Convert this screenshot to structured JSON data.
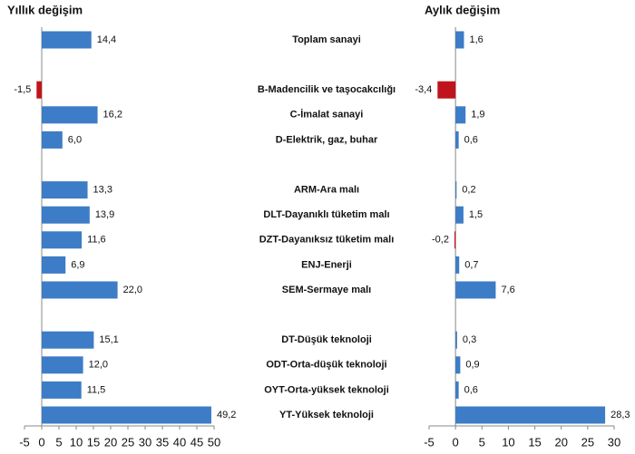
{
  "chart_data": [
    {
      "type": "hbar",
      "title": "Yıllık değişim",
      "categories": [
        "Toplam sanayi",
        null,
        "B-Madencilik ve taşocakcılığı",
        "C-İmalat sanayi",
        "D-Elektrik, gaz, buhar",
        null,
        "ARM-Ara malı",
        "DLT-Dayanıklı tüketim malı",
        "DZT-Dayanıksız tüketim malı",
        "ENJ-Enerji",
        "SEM-Sermaye malı",
        null,
        "DT-Düşük teknoloji",
        "ODT-Orta-düşük teknoloji",
        "OYT-Orta-yüksek teknoloji",
        "YT-Yüksek teknoloji"
      ],
      "values": [
        14.4,
        null,
        -1.5,
        16.2,
        6.0,
        null,
        13.3,
        13.9,
        11.6,
        6.9,
        22.0,
        null,
        15.1,
        12.0,
        11.5,
        49.2
      ],
      "value_labels": [
        "14,4",
        null,
        "-1,5",
        "16,2",
        "6,0",
        null,
        "13,3",
        "13,9",
        "11,6",
        "6,9",
        "22,0",
        null,
        "15,1",
        "12,0",
        "11,5",
        "49,2"
      ],
      "xlim": [
        -5,
        50
      ],
      "xticks": [
        -5,
        0,
        5,
        10,
        15,
        20,
        25,
        30,
        35,
        40,
        45,
        50
      ],
      "color": "#3d7cc6",
      "negative_color": "#c0141c"
    },
    {
      "type": "hbar",
      "title": "Aylık değişim",
      "values": [
        1.6,
        null,
        -3.4,
        1.9,
        0.6,
        null,
        0.2,
        1.5,
        -0.2,
        0.7,
        7.6,
        null,
        0.3,
        0.9,
        0.6,
        28.3
      ],
      "value_labels": [
        "1,6",
        null,
        "-3,4",
        "1,9",
        "0,6",
        null,
        "0,2",
        "1,5",
        "-0,2",
        "0,7",
        "7,6",
        null,
        "0,3",
        "0,9",
        "0,6",
        "28,3"
      ],
      "xlim": [
        -5,
        30
      ],
      "xticks": [
        -5,
        0,
        5,
        10,
        15,
        20,
        25,
        30
      ],
      "color": "#3d7cc6",
      "negative_color": "#c0141c"
    }
  ]
}
